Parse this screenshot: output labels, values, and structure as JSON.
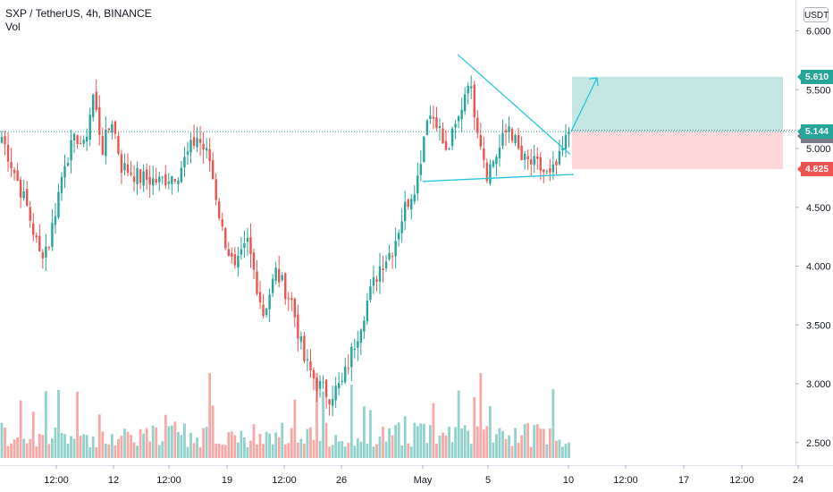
{
  "header": {
    "title": "SXP / TetherUS, 4h, BINANCE",
    "indicator": "Vol"
  },
  "currency_button": "USDT",
  "colors": {
    "up": "#26a69a",
    "down": "#ef5350",
    "pattern_line": "#26c6da",
    "target_zone": "#b2dfdb",
    "stop_zone": "#ffcdd2",
    "current_price": "#26a69a",
    "previous_close": "#787b86",
    "stop_tag": "#ef5350"
  },
  "price_tags": {
    "target": "5.610",
    "previous_close": "5.155",
    "current": "5.144",
    "stop": "4.825"
  },
  "chart_data": {
    "type": "candlestick",
    "symbol": "SXP / TetherUS",
    "interval": "4h",
    "exchange": "BINANCE",
    "y_axis": {
      "ticks": [
        "6.000",
        "5.500",
        "5.000",
        "4.500",
        "4.000",
        "3.500",
        "3.000",
        "2.500"
      ],
      "range": [
        2.4,
        6.05
      ]
    },
    "x_axis": {
      "ticks": [
        "12:00",
        "12",
        "12:00",
        "19",
        "12:00",
        "26",
        "May",
        "5",
        "10",
        "12:00",
        "17",
        "12:00",
        "24"
      ]
    },
    "anchors": [
      [
        0,
        5.1
      ],
      [
        8,
        4.5
      ],
      [
        12,
        4.1
      ],
      [
        15,
        4.2
      ],
      [
        20,
        4.9
      ],
      [
        24,
        5.1
      ],
      [
        26,
        5.0
      ],
      [
        29,
        5.45
      ],
      [
        32,
        5.0
      ],
      [
        35,
        5.25
      ],
      [
        38,
        4.85
      ],
      [
        44,
        4.75
      ],
      [
        50,
        4.72
      ],
      [
        56,
        4.8
      ],
      [
        62,
        5.1
      ],
      [
        66,
        4.9
      ],
      [
        70,
        4.3
      ],
      [
        74,
        3.95
      ],
      [
        78,
        4.2
      ],
      [
        83,
        3.6
      ],
      [
        87,
        3.95
      ],
      [
        92,
        3.7
      ],
      [
        96,
        3.2
      ],
      [
        100,
        3.0
      ],
      [
        104,
        2.9
      ],
      [
        108,
        3.0
      ],
      [
        112,
        3.35
      ],
      [
        116,
        3.7
      ],
      [
        120,
        4.0
      ],
      [
        124,
        4.15
      ],
      [
        128,
        4.5
      ],
      [
        132,
        4.75
      ],
      [
        135,
        5.3
      ],
      [
        138,
        5.25
      ],
      [
        141,
        4.95
      ],
      [
        145,
        5.25
      ],
      [
        148,
        5.6
      ],
      [
        151,
        5.2
      ],
      [
        154,
        4.8
      ],
      [
        158,
        5.0
      ],
      [
        161,
        5.2
      ],
      [
        165,
        4.9
      ],
      [
        170,
        4.85
      ],
      [
        174,
        4.75
      ],
      [
        177,
        4.9
      ],
      [
        180,
        5.144
      ]
    ],
    "current_price": 5.144,
    "previous_close": 5.155,
    "long_position": {
      "entry": 5.144,
      "target": 5.61,
      "stop": 4.825
    },
    "pattern": {
      "type": "falling wedge",
      "upper": {
        "from": 5.8,
        "to": 4.95
      },
      "lower": {
        "from": 4.72,
        "to": 4.78
      }
    },
    "projection": {
      "from": 5.144,
      "to": 5.6
    }
  }
}
